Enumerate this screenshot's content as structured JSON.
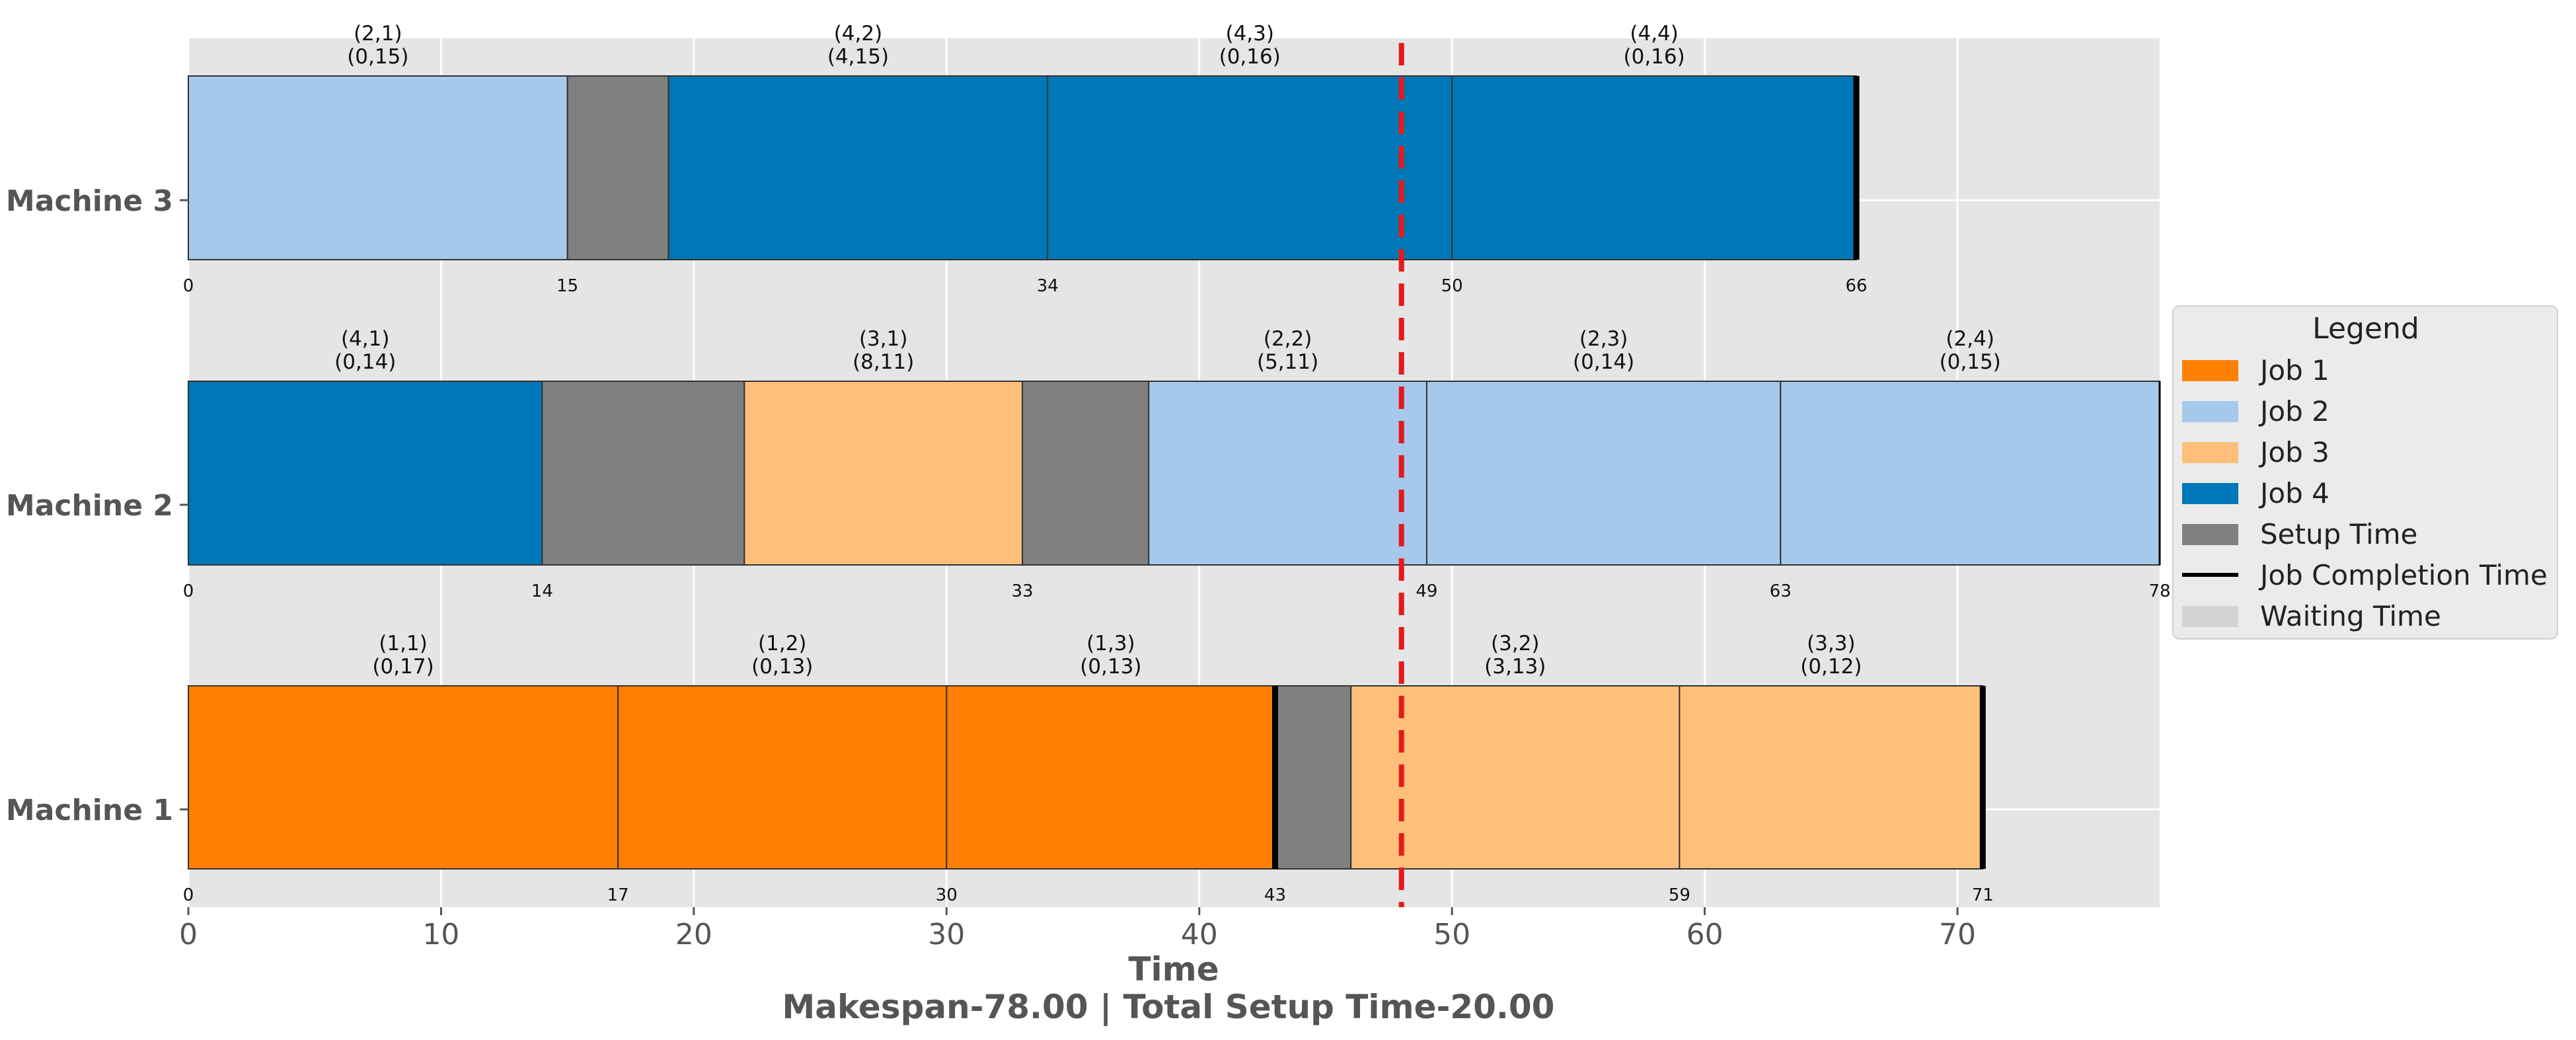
{
  "chart_data": {
    "type": "gantt",
    "xlabel": "Time",
    "subtitle": "Makespan-78.00 | Total Setup Time-20.00",
    "xlim": [
      0,
      78
    ],
    "xticks": [
      0,
      10,
      20,
      30,
      40,
      50,
      60,
      70
    ],
    "grid": true,
    "deadline_line": {
      "x": 48,
      "color": "#e41a1c",
      "style": "dashed"
    },
    "colors": {
      "Job 1": "#ff7f00",
      "Job 2": "#a6c8ea",
      "Job 3": "#fdbf7a",
      "Job 4": "#0077b6",
      "Setup Time": "#808080",
      "Waiting Time": "#d3d3d3",
      "Job Completion Time": "#000000"
    },
    "machines": [
      {
        "name": "Machine 3",
        "tasks": [
          {
            "type": "job",
            "job": 2,
            "start": 0,
            "end": 15,
            "label1": "(2,1)",
            "label2": "(0,15)"
          },
          {
            "type": "setup",
            "start": 15,
            "end": 19
          },
          {
            "type": "job",
            "job": 4,
            "start": 19,
            "end": 34,
            "label1": "(4,2)",
            "label2": "(4,15)"
          },
          {
            "type": "job",
            "job": 4,
            "start": 34,
            "end": 50,
            "label1": "(4,3)",
            "label2": "(0,16)"
          },
          {
            "type": "job",
            "job": 4,
            "start": 50,
            "end": 66,
            "label1": "(4,4)",
            "label2": "(0,16)"
          }
        ],
        "start_labels": [
          "0",
          "15",
          "34",
          "50",
          "66"
        ],
        "completion_marks": [
          66
        ]
      },
      {
        "name": "Machine 2",
        "tasks": [
          {
            "type": "job",
            "job": 4,
            "start": 0,
            "end": 14,
            "label1": "(4,1)",
            "label2": "(0,14)"
          },
          {
            "type": "setup",
            "start": 14,
            "end": 22
          },
          {
            "type": "job",
            "job": 3,
            "start": 22,
            "end": 33,
            "label1": "(3,1)",
            "label2": "(8,11)"
          },
          {
            "type": "setup",
            "start": 33,
            "end": 38
          },
          {
            "type": "job",
            "job": 2,
            "start": 38,
            "end": 49,
            "label1": "(2,2)",
            "label2": "(5,11)"
          },
          {
            "type": "job",
            "job": 2,
            "start": 49,
            "end": 63,
            "label1": "(2,3)",
            "label2": "(0,14)"
          },
          {
            "type": "job",
            "job": 2,
            "start": 63,
            "end": 78,
            "label1": "(2,4)",
            "label2": "(0,15)"
          }
        ],
        "start_labels": [
          "0",
          "14",
          "33",
          "49",
          "63",
          "78"
        ],
        "completion_marks": [
          78
        ]
      },
      {
        "name": "Machine 1",
        "tasks": [
          {
            "type": "job",
            "job": 1,
            "start": 0,
            "end": 17,
            "label1": "(1,1)",
            "label2": "(0,17)"
          },
          {
            "type": "job",
            "job": 1,
            "start": 17,
            "end": 30,
            "label1": "(1,2)",
            "label2": "(0,13)"
          },
          {
            "type": "job",
            "job": 1,
            "start": 30,
            "end": 43,
            "label1": "(1,3)",
            "label2": "(0,13)"
          },
          {
            "type": "setup",
            "start": 43,
            "end": 46
          },
          {
            "type": "job",
            "job": 3,
            "start": 46,
            "end": 59,
            "label1": "(3,2)",
            "label2": "(3,13)"
          },
          {
            "type": "job",
            "job": 3,
            "start": 59,
            "end": 71,
            "label1": "(3,3)",
            "label2": "(0,12)"
          }
        ],
        "start_labels": [
          "0",
          "17",
          "30",
          "43",
          "59",
          "71"
        ],
        "completion_marks": [
          43,
          71
        ]
      }
    ],
    "legend": {
      "title": "Legend",
      "placement": "center-right",
      "items": [
        {
          "label": "Job 1",
          "kind": "patch",
          "color": "#ff7f00"
        },
        {
          "label": "Job 2",
          "kind": "patch",
          "color": "#a6c8ea"
        },
        {
          "label": "Job 3",
          "kind": "patch",
          "color": "#fdbf7a"
        },
        {
          "label": "Job 4",
          "kind": "patch",
          "color": "#0077b6"
        },
        {
          "label": "Setup Time",
          "kind": "patch",
          "color": "#808080"
        },
        {
          "label": "Job Completion Time",
          "kind": "line",
          "color": "#000000"
        },
        {
          "label": "Waiting Time",
          "kind": "patch",
          "color": "#d3d3d3"
        }
      ]
    }
  }
}
